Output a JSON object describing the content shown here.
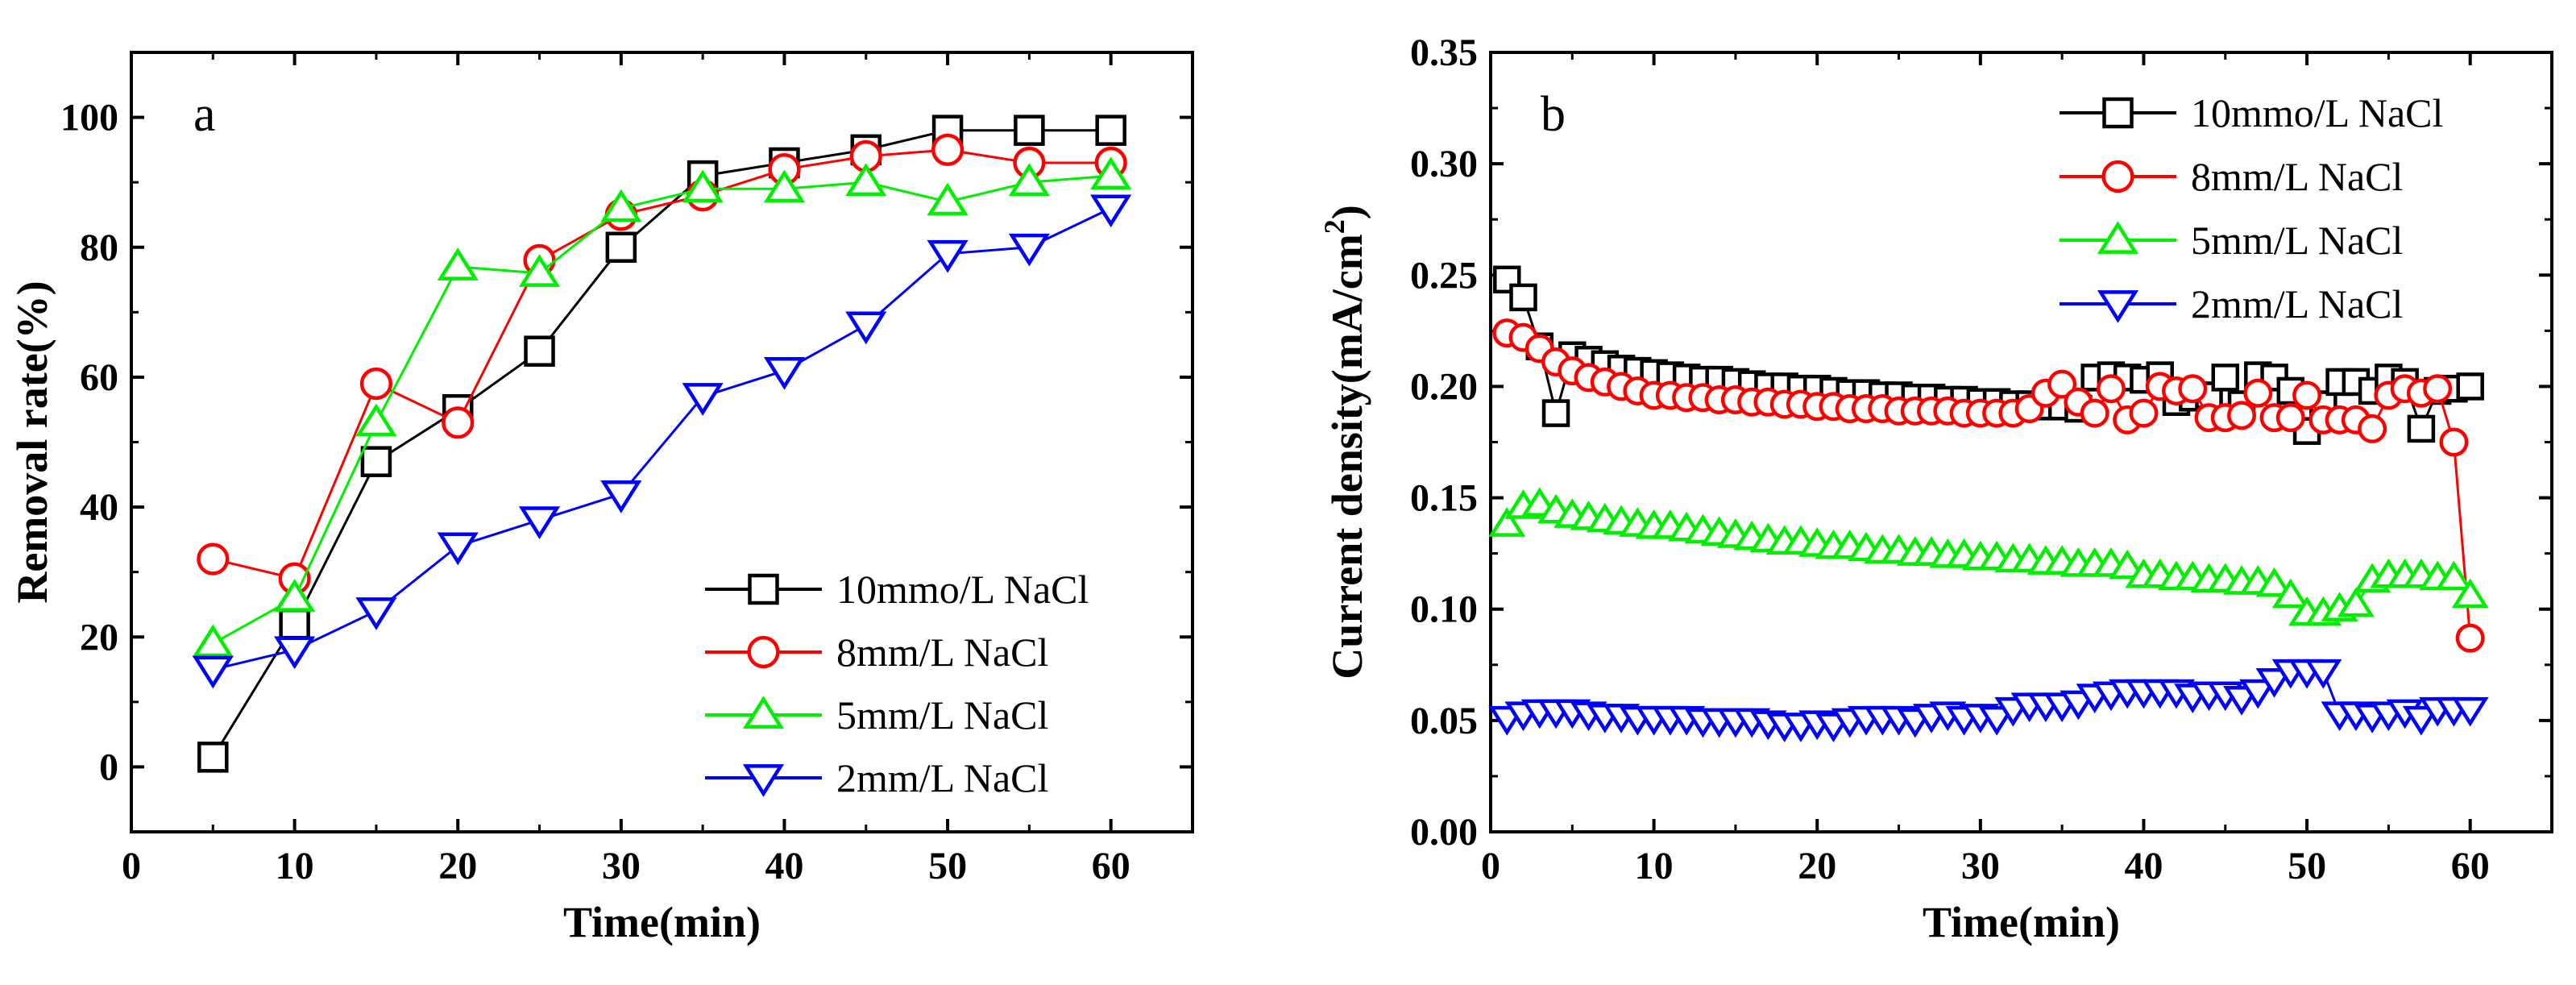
{
  "chart_data": [
    {
      "type": "line",
      "panel_label": "a",
      "xlabel": "Time(min)",
      "ylabel": "Removal rate(%)",
      "xlim": [
        0,
        65
      ],
      "ylim": [
        -10,
        110
      ],
      "xticks": [
        0,
        10,
        20,
        30,
        40,
        50,
        60
      ],
      "yticks": [
        0,
        20,
        40,
        60,
        80,
        100
      ],
      "legend_position": "bottom-right",
      "series": [
        {
          "name": "10mmo/L NaCl",
          "color": "#000000",
          "marker": "square",
          "x": [
            5,
            10,
            15,
            20,
            25,
            30,
            35,
            40,
            45,
            50,
            55,
            60
          ],
          "y": [
            1.5,
            22,
            47,
            55,
            64,
            80,
            91,
            93,
            95,
            98,
            98,
            98
          ]
        },
        {
          "name": "8mm/L NaCl",
          "color": "#ff0000",
          "marker": "circle",
          "x": [
            5,
            10,
            15,
            20,
            25,
            30,
            35,
            40,
            45,
            50,
            55,
            60
          ],
          "y": [
            32,
            29,
            59,
            53,
            78,
            85,
            88,
            92,
            94,
            95,
            93,
            93
          ]
        },
        {
          "name": "5mm/L NaCl",
          "color": "#00ee00",
          "marker": "triangle-up",
          "x": [
            5,
            10,
            15,
            20,
            25,
            30,
            35,
            40,
            45,
            50,
            55,
            60
          ],
          "y": [
            19,
            26,
            53,
            77,
            76,
            86,
            89,
            89,
            90,
            87,
            90,
            91
          ]
        },
        {
          "name": "2mm/L NaCl",
          "color": "#0000ff",
          "marker": "triangle-down",
          "x": [
            5,
            10,
            15,
            20,
            25,
            30,
            35,
            40,
            45,
            50,
            55,
            60
          ],
          "y": [
            15,
            18,
            24,
            34,
            38,
            42,
            57,
            61,
            68,
            79,
            80,
            86
          ]
        }
      ]
    },
    {
      "type": "line",
      "panel_label": "b",
      "xlabel": "Time(min)",
      "ylabel": "Current density(mA/cm",
      "ylabel_sup": "2",
      "ylabel_end": ")",
      "xlim": [
        0,
        65
      ],
      "ylim": [
        0,
        0.35
      ],
      "xticks": [
        0,
        10,
        20,
        30,
        40,
        50,
        60
      ],
      "yticks": [
        "0.00",
        "0.05",
        "0.10",
        "0.15",
        "0.20",
        "0.25",
        "0.30",
        "0.35"
      ],
      "legend_position": "top-right",
      "series": [
        {
          "name": "10mmo/L NaCl",
          "color": "#000000",
          "marker": "square",
          "x": [
            1,
            2,
            3,
            4,
            5,
            6,
            7,
            8,
            9,
            10,
            11,
            12,
            13,
            14,
            15,
            16,
            17,
            18,
            19,
            20,
            21,
            22,
            23,
            24,
            25,
            26,
            27,
            28,
            29,
            30,
            31,
            32,
            33,
            34,
            35,
            36,
            37,
            38,
            39,
            40,
            41,
            42,
            43,
            44,
            45,
            46,
            47,
            48,
            49,
            50,
            51,
            52,
            53,
            54,
            55,
            56,
            57,
            58,
            59,
            60
          ],
          "y": [
            0.248,
            0.24,
            0.218,
            0.188,
            0.214,
            0.212,
            0.21,
            0.208,
            0.207,
            0.206,
            0.205,
            0.204,
            0.203,
            0.203,
            0.202,
            0.201,
            0.2,
            0.2,
            0.199,
            0.199,
            0.198,
            0.197,
            0.197,
            0.196,
            0.196,
            0.195,
            0.195,
            0.194,
            0.194,
            0.193,
            0.193,
            0.192,
            0.192,
            0.191,
            0.191,
            0.19,
            0.204,
            0.205,
            0.204,
            0.203,
            0.205,
            0.193,
            0.195,
            0.196,
            0.204,
            0.192,
            0.205,
            0.204,
            0.198,
            0.18,
            0.192,
            0.202,
            0.202,
            0.198,
            0.204,
            0.202,
            0.181,
            0.198,
            0.199,
            0.2
          ]
        },
        {
          "name": "8mm/L NaCl",
          "color": "#ff0000",
          "marker": "circle",
          "x": [
            1,
            2,
            3,
            4,
            5,
            6,
            7,
            8,
            9,
            10,
            11,
            12,
            13,
            14,
            15,
            16,
            17,
            18,
            19,
            20,
            21,
            22,
            23,
            24,
            25,
            26,
            27,
            28,
            29,
            30,
            31,
            32,
            33,
            34,
            35,
            36,
            37,
            38,
            39,
            40,
            41,
            42,
            43,
            44,
            45,
            46,
            47,
            48,
            49,
            50,
            51,
            52,
            53,
            54,
            55,
            56,
            57,
            58,
            59,
            60
          ],
          "y": [
            0.224,
            0.222,
            0.217,
            0.211,
            0.207,
            0.204,
            0.202,
            0.2,
            0.198,
            0.196,
            0.196,
            0.195,
            0.195,
            0.194,
            0.194,
            0.193,
            0.193,
            0.192,
            0.192,
            0.191,
            0.191,
            0.19,
            0.19,
            0.19,
            0.189,
            0.189,
            0.189,
            0.189,
            0.188,
            0.188,
            0.188,
            0.188,
            0.19,
            0.197,
            0.201,
            0.193,
            0.188,
            0.199,
            0.185,
            0.188,
            0.2,
            0.198,
            0.199,
            0.186,
            0.186,
            0.187,
            0.197,
            0.186,
            0.186,
            0.196,
            0.185,
            0.185,
            0.185,
            0.181,
            0.196,
            0.199,
            0.197,
            0.199,
            0.175,
            0.087
          ]
        },
        {
          "name": "5mm/L NaCl",
          "color": "#00ee00",
          "marker": "triangle-up",
          "x": [
            1,
            2,
            3,
            4,
            5,
            6,
            7,
            8,
            9,
            10,
            11,
            12,
            13,
            14,
            15,
            16,
            17,
            18,
            19,
            20,
            21,
            22,
            23,
            24,
            25,
            26,
            27,
            28,
            29,
            30,
            31,
            32,
            33,
            34,
            35,
            36,
            37,
            38,
            39,
            40,
            41,
            42,
            43,
            44,
            45,
            46,
            47,
            48,
            49,
            50,
            51,
            52,
            53,
            54,
            55,
            56,
            57,
            58,
            59,
            60
          ],
          "y": [
            0.138,
            0.146,
            0.147,
            0.144,
            0.142,
            0.141,
            0.14,
            0.139,
            0.138,
            0.137,
            0.137,
            0.136,
            0.135,
            0.134,
            0.133,
            0.132,
            0.131,
            0.13,
            0.13,
            0.129,
            0.128,
            0.128,
            0.127,
            0.126,
            0.126,
            0.125,
            0.125,
            0.124,
            0.124,
            0.123,
            0.123,
            0.122,
            0.122,
            0.121,
            0.121,
            0.12,
            0.12,
            0.12,
            0.119,
            0.115,
            0.115,
            0.114,
            0.114,
            0.113,
            0.113,
            0.112,
            0.112,
            0.111,
            0.106,
            0.098,
            0.098,
            0.1,
            0.102,
            0.113,
            0.115,
            0.115,
            0.115,
            0.114,
            0.114,
            0.106
          ]
        },
        {
          "name": "2mm/L NaCl",
          "color": "#0000ff",
          "marker": "triangle-down",
          "x": [
            1,
            2,
            3,
            4,
            5,
            6,
            7,
            8,
            9,
            10,
            11,
            12,
            13,
            14,
            15,
            16,
            17,
            18,
            19,
            20,
            21,
            22,
            23,
            24,
            25,
            26,
            27,
            28,
            29,
            30,
            31,
            32,
            33,
            34,
            35,
            36,
            37,
            38,
            39,
            40,
            41,
            42,
            43,
            44,
            45,
            46,
            47,
            48,
            49,
            50,
            51,
            52,
            53,
            54,
            55,
            56,
            57,
            58,
            59,
            60
          ],
          "y": [
            0.051,
            0.053,
            0.054,
            0.054,
            0.054,
            0.053,
            0.052,
            0.052,
            0.051,
            0.051,
            0.051,
            0.051,
            0.05,
            0.05,
            0.05,
            0.05,
            0.049,
            0.048,
            0.048,
            0.049,
            0.048,
            0.05,
            0.051,
            0.051,
            0.051,
            0.05,
            0.052,
            0.053,
            0.051,
            0.052,
            0.051,
            0.055,
            0.057,
            0.057,
            0.057,
            0.058,
            0.061,
            0.062,
            0.063,
            0.063,
            0.063,
            0.063,
            0.061,
            0.062,
            0.062,
            0.06,
            0.063,
            0.068,
            0.072,
            0.072,
            0.072,
            0.053,
            0.053,
            0.052,
            0.053,
            0.054,
            0.051,
            0.055,
            0.055,
            0.055
          ]
        }
      ]
    }
  ]
}
